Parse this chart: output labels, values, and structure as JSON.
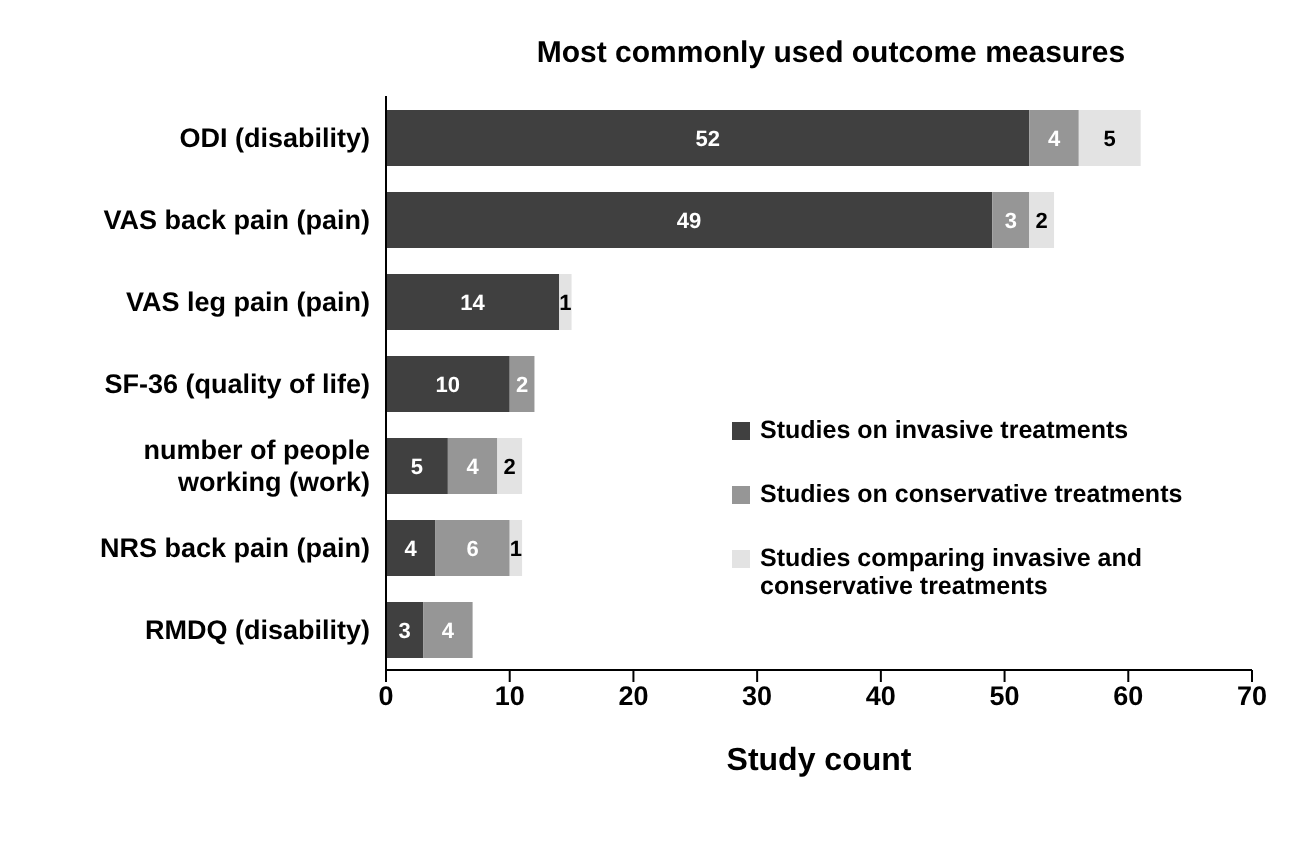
{
  "chart_data": {
    "type": "bar",
    "orientation": "horizontal",
    "stacked": true,
    "title": "Most commonly used outcome measures",
    "xlabel": "Study count",
    "categories": [
      "ODI (disability)",
      "VAS back pain (pain)",
      "VAS leg pain (pain)",
      "SF-36 (quality of life)",
      "number of people working (work)",
      "NRS back pain (pain)",
      "RMDQ (disability)"
    ],
    "series": [
      {
        "name": "Studies on invasive treatments",
        "color": "#404040",
        "values": [
          52,
          49,
          14,
          10,
          5,
          4,
          3
        ]
      },
      {
        "name": "Studies on conservative treatments",
        "color": "#969696",
        "values": [
          4,
          3,
          null,
          2,
          4,
          6,
          4
        ]
      },
      {
        "name": "Studies comparing invasive and conservative treatments",
        "color": "#e3e3e3",
        "values": [
          5,
          2,
          1,
          null,
          2,
          1,
          null
        ]
      }
    ],
    "xlim": [
      0,
      70
    ],
    "xticks": [
      0,
      10,
      20,
      30,
      40,
      50,
      60,
      70
    ],
    "grid": false,
    "legend": "right",
    "data_labels": true
  }
}
